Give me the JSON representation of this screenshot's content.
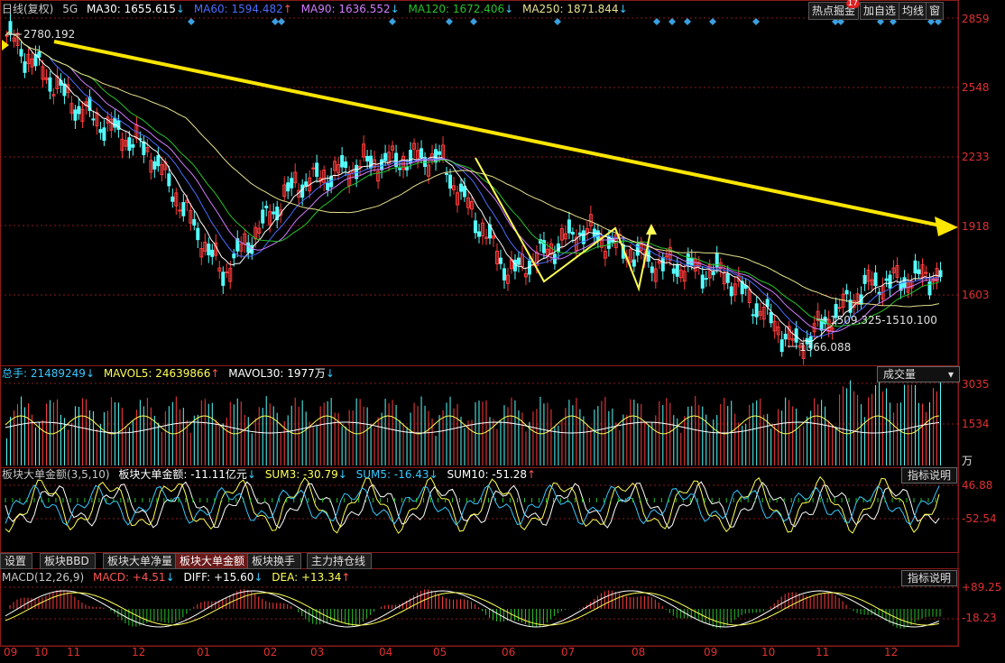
{
  "price_panel": {
    "legend": {
      "title": "日线(复权)",
      "period": "5G",
      "ma30": {
        "label": "MA30: 1655.615",
        "arrow": "↓",
        "color": "#ffffff"
      },
      "ma60": {
        "label": "MA60: 1594.482",
        "arrow": "↑",
        "color": "#4a6cff"
      },
      "ma90": {
        "label": "MA90: 1636.552",
        "arrow": "↓",
        "color": "#d27cff"
      },
      "ma120": {
        "label": "MA120: 1672.406",
        "arrow": "↓",
        "color": "#27c22a"
      },
      "ma250": {
        "label": "MA250: 1871.844",
        "arrow": "↓",
        "color": "#e6e08c"
      }
    },
    "buttons": [
      {
        "label": "热点掘金",
        "badge": "17"
      },
      {
        "label": "加自选"
      },
      {
        "label": "均线"
      },
      {
        "label": "窗"
      }
    ],
    "y_ticks": [
      "2859",
      "2548",
      "2233",
      "1918",
      "1603"
    ],
    "annotations": {
      "high": "2780.192",
      "low": "1366.088",
      "range": "1509.325-1510.100"
    }
  },
  "volume_panel": {
    "legend": {
      "total": {
        "label": "总手: 21489249",
        "arrow": "↓",
        "color": "#37c8ff"
      },
      "mavol5": {
        "label": "MAVOL5: 24639866",
        "arrow": "↑",
        "color": "#ffff55"
      },
      "mavol30": {
        "label": "MAVOL30: 1977万",
        "arrow": "↓",
        "color": "#ffffff"
      }
    },
    "dropdown": "成交量",
    "y_ticks": [
      "3035",
      "1534"
    ],
    "unit": "万"
  },
  "flow_panel": {
    "legend": {
      "name": {
        "label": "板块大单金额(3,5,10)",
        "color": "#c8c8c8"
      },
      "value": {
        "label": "板块大单金额: -11.11亿元",
        "arrow": "↓",
        "color": "#ffffff"
      },
      "sum3": {
        "label": "SUM3: -30.79",
        "arrow": "↓",
        "color": "#ffff55"
      },
      "sum5": {
        "label": "SUM5: -16.43",
        "arrow": "↓",
        "color": "#37c8ff"
      },
      "sum10": {
        "label": "SUM10: -51.28",
        "arrow": "↑",
        "color": "#ffffff"
      }
    },
    "help_button": "指标说明",
    "y_ticks": [
      "46.88",
      "-52.54"
    ]
  },
  "tabs": [
    "设置",
    "板块BBD",
    "板块大单净量",
    "板块大单金额",
    "板块换手",
    "主力持仓线"
  ],
  "active_tab": 3,
  "macd_panel": {
    "legend": {
      "name": {
        "label": "MACD(12,26,9)",
        "color": "#c8c8c8"
      },
      "macd": {
        "label": "MACD: +4.51",
        "arrow": "↓",
        "color": "#ff5555"
      },
      "diff": {
        "label": "DIFF: +15.60",
        "arrow": "↓",
        "color": "#ffffff"
      },
      "dea": {
        "label": "DEA: +13.34",
        "arrow": "↑",
        "color": "#ffff55"
      }
    },
    "help_button": "指标说明",
    "y_ticks": [
      "+89.25",
      "-18.23"
    ]
  },
  "x_axis": {
    "months": [
      "09",
      "10",
      "11",
      "12",
      "01",
      "02",
      "03",
      "04",
      "05",
      "06",
      "07",
      "08",
      "09",
      "10",
      "11",
      "12"
    ]
  },
  "colors": {
    "up": "#ff3c3c",
    "down": "#54ffff",
    "grid": "#8b1a1a",
    "axis_text": "#e03030",
    "trend_arrow": "#ffe600",
    "zigzag": "#ffff55"
  },
  "chart_data": {
    "type": "candlestick",
    "y_range": [
      1366.088,
      2859
    ],
    "price_path_key_points": [
      {
        "month": "09",
        "price": 2780.192
      },
      {
        "month": "11",
        "price": 2450
      },
      {
        "month": "12",
        "price": 2250
      },
      {
        "month": "02",
        "price": 1700
      },
      {
        "month": "03",
        "price": 2100
      },
      {
        "month": "04",
        "price": 2200
      },
      {
        "month": "05",
        "price": 2233
      },
      {
        "month": "06",
        "price": 1700
      },
      {
        "month": "07",
        "price": 1900
      },
      {
        "month": "08",
        "price": 1750
      },
      {
        "month": "09",
        "price": 1700
      },
      {
        "month": "10",
        "price": 1366.088
      },
      {
        "month": "11",
        "price": 1650
      },
      {
        "month": "12",
        "price": 1700
      }
    ]
  }
}
